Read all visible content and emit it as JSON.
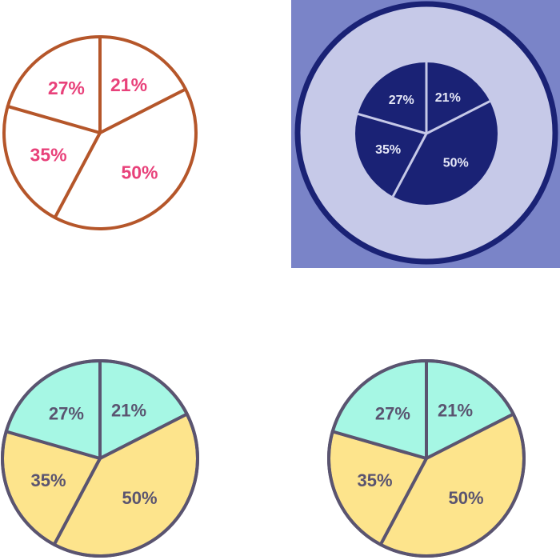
{
  "chart_data": [
    {
      "type": "pie",
      "style": "outline",
      "slices": [
        {
          "label": "21%",
          "value": 21
        },
        {
          "label": "50%",
          "value": 50
        },
        {
          "label": "35%",
          "value": 35
        },
        {
          "label": "27%",
          "value": 27
        }
      ],
      "colors": {
        "stroke": "#b5562a",
        "fill": "#ffffff",
        "label": "#e8417a"
      }
    },
    {
      "type": "pie",
      "style": "badge",
      "slices": [
        {
          "label": "21%",
          "value": 21
        },
        {
          "label": "50%",
          "value": 50
        },
        {
          "label": "35%",
          "value": 35
        },
        {
          "label": "27%",
          "value": 27
        }
      ],
      "colors": {
        "background": "#7a84c8",
        "ring": "#1a2275",
        "disc": "#c6c9e8",
        "pie": "#1a2275",
        "divider": "#c6c9e8",
        "label": "#e6e8f7"
      }
    },
    {
      "type": "pie",
      "style": "filled",
      "slices": [
        {
          "label": "21%",
          "value": 21
        },
        {
          "label": "50%",
          "value": 50
        },
        {
          "label": "35%",
          "value": 35
        },
        {
          "label": "27%",
          "value": 27
        }
      ],
      "colors": {
        "stroke": "#5a5470",
        "top": "#a6f7e4",
        "bottom": "#fde48c",
        "label": "#5a5470"
      }
    },
    {
      "type": "pie",
      "style": "filled",
      "slices": [
        {
          "label": "21%",
          "value": 21
        },
        {
          "label": "50%",
          "value": 50
        },
        {
          "label": "35%",
          "value": 35
        },
        {
          "label": "27%",
          "value": 27
        }
      ],
      "colors": {
        "stroke": "#5a5470",
        "top": "#a6f7e4",
        "bottom": "#fde48c",
        "label": "#5a5470"
      }
    }
  ]
}
